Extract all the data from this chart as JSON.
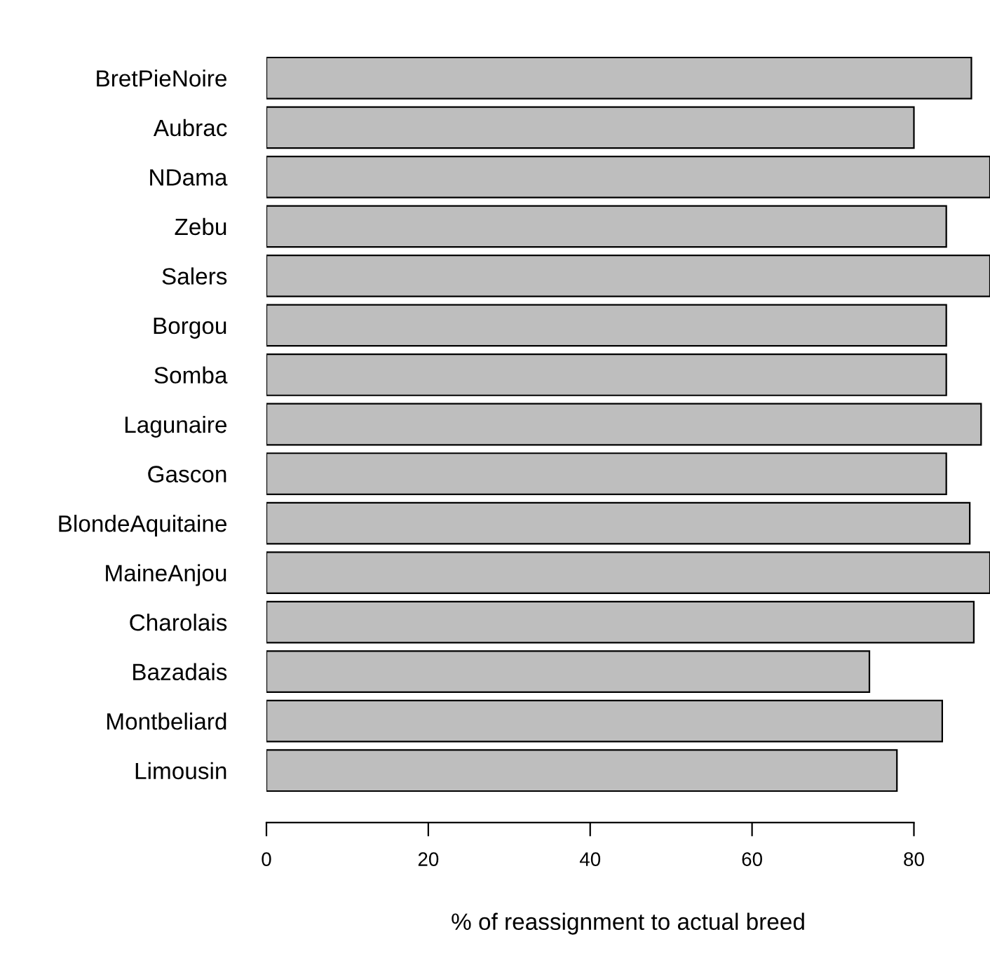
{
  "chart_data": {
    "type": "bar",
    "orientation": "horizontal",
    "xlabel": "% of reassignment to actual breed",
    "categories": [
      "BretPieNoire",
      "Aubrac",
      "NDama",
      "Zebu",
      "Salers",
      "Borgou",
      "Somba",
      "Lagunaire",
      "Gascon",
      "BlondeAquitaine",
      "MaineAnjou",
      "Charolais",
      "Bazadais",
      "Montbeliard",
      "Limousin"
    ],
    "values": [
      87.1,
      80,
      89.4,
      84,
      89.4,
      84,
      84,
      88.3,
      84,
      86.9,
      89.4,
      87.4,
      74.5,
      83.5,
      77.9
    ],
    "color": "#bebebe",
    "xlim": [
      0,
      89.4
    ],
    "xticks": [
      0,
      20,
      40,
      60,
      80
    ],
    "grid": false
  }
}
